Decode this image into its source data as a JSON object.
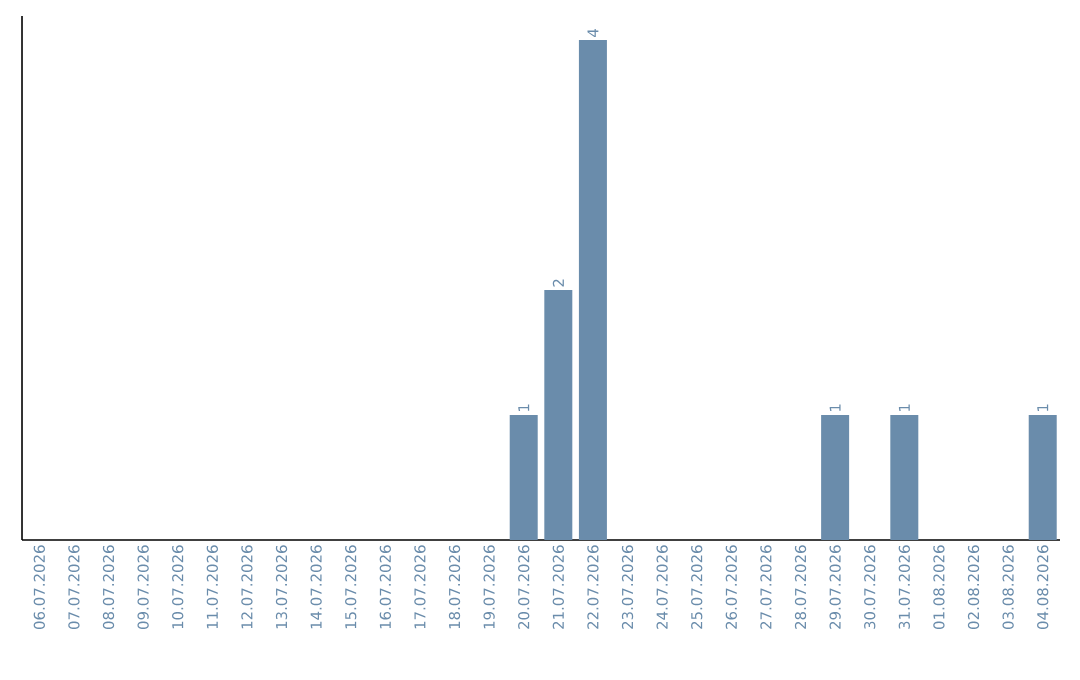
{
  "chart_data": {
    "type": "bar",
    "categories": [
      "06.07.2026",
      "07.07.2026",
      "08.07.2026",
      "09.07.2026",
      "10.07.2026",
      "11.07.2026",
      "12.07.2026",
      "13.07.2026",
      "14.07.2026",
      "15.07.2026",
      "16.07.2026",
      "17.07.2026",
      "18.07.2026",
      "19.07.2026",
      "20.07.2026",
      "21.07.2026",
      "22.07.2026",
      "23.07.2026",
      "24.07.2026",
      "25.07.2026",
      "26.07.2026",
      "27.07.2026",
      "28.07.2026",
      "29.07.2026",
      "30.07.2026",
      "31.07.2026",
      "01.08.2026",
      "02.08.2026",
      "03.08.2026",
      "04.08.2026"
    ],
    "values": [
      null,
      null,
      null,
      null,
      null,
      null,
      null,
      null,
      null,
      null,
      null,
      null,
      null,
      null,
      1,
      2,
      4,
      null,
      null,
      null,
      null,
      null,
      null,
      1,
      null,
      1,
      null,
      null,
      null,
      1
    ],
    "value_labels": [
      null,
      null,
      null,
      null,
      null,
      null,
      null,
      null,
      null,
      null,
      null,
      null,
      null,
      null,
      "1",
      "2",
      "4",
      null,
      null,
      null,
      null,
      null,
      null,
      "1",
      null,
      "1",
      null,
      null,
      null,
      "1"
    ],
    "color": "#6a8cab"
  }
}
